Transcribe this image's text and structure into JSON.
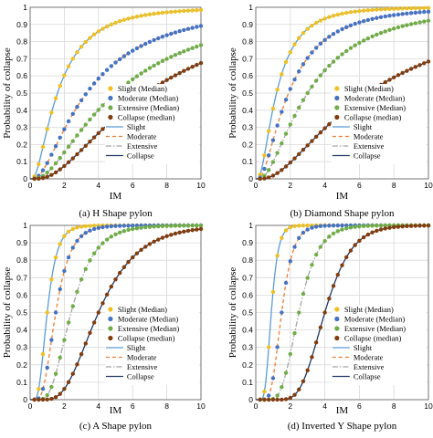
{
  "chart_data": [
    {
      "type": "line",
      "caption": "(a) H Shape pylon",
      "xlabel": "IM",
      "ylabel": "Probability of collapse",
      "xlim": [
        0,
        10
      ],
      "ylim": [
        0,
        1
      ],
      "xticks": [
        "0",
        "2",
        "4",
        "6",
        "8",
        "10"
      ],
      "yticks": [
        "0",
        "0.1",
        "0.2",
        "0.3",
        "0.4",
        "0.5",
        "0.6",
        "0.7",
        "0.8",
        "0.9",
        "1"
      ],
      "grid": true,
      "legend_position": "right",
      "series": [
        {
          "name": "Slight",
          "marker_label": "Slight (Median)",
          "color": "#5b9bd5",
          "marker_color": "#f0c020",
          "dash": "solid",
          "median": 1.6,
          "beta": 0.85
        },
        {
          "name": "Moderate",
          "marker_label": "Moderate (Median)",
          "color": "#ed7d31",
          "marker_color": "#4472c4",
          "dash": "dashed",
          "median": 3.3,
          "beta": 0.9
        },
        {
          "name": "Extensive",
          "marker_label": "Extensive (Median)",
          "color": "#a5a5a5",
          "marker_color": "#70ad47",
          "dash": "dashdot",
          "median": 5.0,
          "beta": 0.9
        },
        {
          "name": "Collapse",
          "marker_label": "Collapse (median)",
          "color": "#1f3864",
          "marker_color": "#843c0c",
          "dash": "solid",
          "median": 6.8,
          "beta": 0.85
        }
      ]
    },
    {
      "type": "line",
      "caption": "(b) Diamond Shape pylon",
      "xlabel": "IM",
      "ylabel": "Probability of collapse",
      "xlim": [
        0,
        10
      ],
      "ylim": [
        0,
        1
      ],
      "xticks": [
        "0",
        "2",
        "4",
        "6",
        "8",
        "10"
      ],
      "yticks": [
        "0",
        "0.1",
        "0.2",
        "0.3",
        "0.4",
        "0.5",
        "0.6",
        "0.7",
        "0.8",
        "0.9",
        "1"
      ],
      "grid": true,
      "legend_position": "right",
      "series": [
        {
          "name": "Slight",
          "marker_label": "Slight (Median)",
          "color": "#5b9bd5",
          "marker_color": "#f0c020",
          "dash": "solid",
          "median": 1.2,
          "beta": 0.8
        },
        {
          "name": "Moderate",
          "marker_label": "Moderate (Median)",
          "color": "#ed7d31",
          "marker_color": "#4472c4",
          "dash": "dashed",
          "median": 1.9,
          "beta": 0.85
        },
        {
          "name": "Extensive",
          "marker_label": "Extensive (Median)",
          "color": "#a5a5a5",
          "marker_color": "#70ad47",
          "dash": "dashdot",
          "median": 3.0,
          "beta": 0.85
        },
        {
          "name": "Collapse",
          "marker_label": "Collapse (median)",
          "color": "#1f3864",
          "marker_color": "#843c0c",
          "dash": "solid",
          "median": 6.5,
          "beta": 0.9
        }
      ]
    },
    {
      "type": "line",
      "caption": "(c) A Shape pylon",
      "xlabel": "IM",
      "ylabel": "Probability of collapse",
      "xlim": [
        0,
        10
      ],
      "ylim": [
        0,
        1
      ],
      "xticks": [
        "0",
        "2",
        "4",
        "6",
        "8",
        "10"
      ],
      "yticks": [
        "0",
        "0.1",
        "0.2",
        "0.3",
        "0.4",
        "0.5",
        "0.6",
        "0.7",
        "0.8",
        "0.9",
        "1"
      ],
      "grid": true,
      "legend_position": "right",
      "series": [
        {
          "name": "Slight",
          "marker_label": "Slight (Median)",
          "color": "#5b9bd5",
          "marker_color": "#f0c020",
          "dash": "solid",
          "median": 1.0,
          "beta": 0.45
        },
        {
          "name": "Moderate",
          "marker_label": "Moderate (Median)",
          "color": "#ed7d31",
          "marker_color": "#4472c4",
          "dash": "dashed",
          "median": 1.5,
          "beta": 0.45
        },
        {
          "name": "Extensive",
          "marker_label": "Extensive (Median)",
          "color": "#a5a5a5",
          "marker_color": "#70ad47",
          "dash": "dashdot",
          "median": 2.4,
          "beta": 0.45
        },
        {
          "name": "Collapse",
          "marker_label": "Collapse (median)",
          "color": "#1f3864",
          "marker_color": "#843c0c",
          "dash": "solid",
          "median": 4.0,
          "beta": 0.45
        }
      ]
    },
    {
      "type": "line",
      "caption": "(d) Inverted Y Shape pylon",
      "xlabel": "IM",
      "ylabel": "Probability of collapse",
      "xlim": [
        0,
        10
      ],
      "ylim": [
        0,
        1
      ],
      "xticks": [
        "0",
        "2",
        "4",
        "6",
        "8",
        "10"
      ],
      "yticks": [
        "0",
        "0.1",
        "0.2",
        "0.3",
        "0.4",
        "0.5",
        "0.6",
        "0.7",
        "0.8",
        "0.9",
        "1"
      ],
      "grid": true,
      "legend_position": "right",
      "series": [
        {
          "name": "Slight",
          "marker_label": "Slight (Median)",
          "color": "#5b9bd5",
          "marker_color": "#f0c020",
          "dash": "solid",
          "median": 0.9,
          "beta": 0.35
        },
        {
          "name": "Moderate",
          "marker_label": "Moderate (Median)",
          "color": "#ed7d31",
          "marker_color": "#4472c4",
          "dash": "dashed",
          "median": 1.5,
          "beta": 0.35
        },
        {
          "name": "Extensive",
          "marker_label": "Extensive (Median)",
          "color": "#a5a5a5",
          "marker_color": "#70ad47",
          "dash": "dashdot",
          "median": 2.5,
          "beta": 0.35
        },
        {
          "name": "Collapse",
          "marker_label": "Collapse (median)",
          "color": "#1f3864",
          "marker_color": "#843c0c",
          "dash": "solid",
          "median": 4.0,
          "beta": 0.3
        }
      ]
    }
  ]
}
